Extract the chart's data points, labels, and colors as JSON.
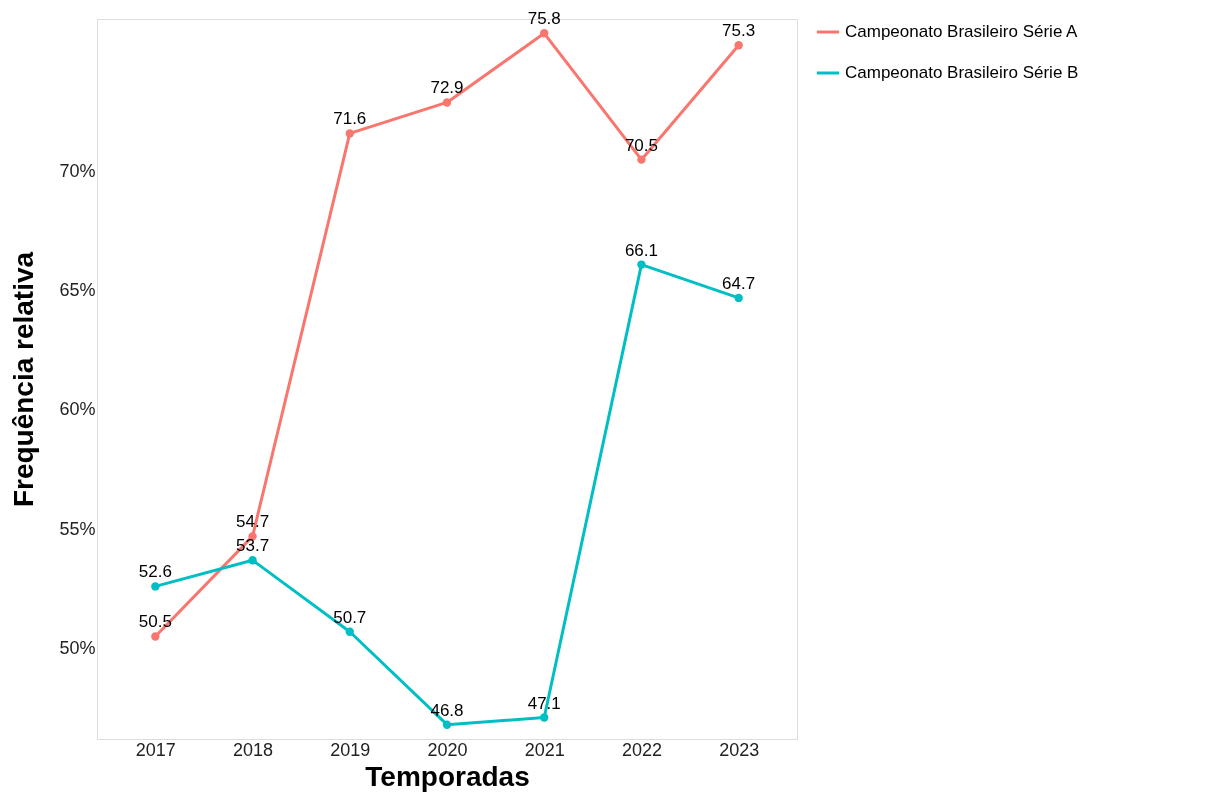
{
  "chart_data": {
    "type": "line",
    "xlabel": "Temporadas",
    "ylabel": "Frequência relativa",
    "categories": [
      "2017",
      "2018",
      "2019",
      "2020",
      "2021",
      "2022",
      "2023"
    ],
    "series": [
      {
        "name": "Campeonato Brasileiro Série A",
        "color": "#f8766d",
        "values": [
          50.5,
          54.7,
          71.6,
          72.9,
          75.8,
          70.5,
          75.3
        ]
      },
      {
        "name": "Campeonato Brasileiro Série B",
        "color": "#00bfc4",
        "values": [
          52.6,
          53.7,
          50.7,
          46.8,
          47.1,
          66.1,
          64.7
        ]
      }
    ],
    "ylim": [
      46.2,
      76.4
    ],
    "yticks": [
      {
        "value": 50,
        "label": "50%"
      },
      {
        "value": 55,
        "label": "55%"
      },
      {
        "value": 60,
        "label": "60%"
      },
      {
        "value": 65,
        "label": "65%"
      },
      {
        "value": 70,
        "label": "70%"
      }
    ],
    "grid": false,
    "legend": "right",
    "marker": "circle",
    "line_style": "solid",
    "data_labels": true
  }
}
